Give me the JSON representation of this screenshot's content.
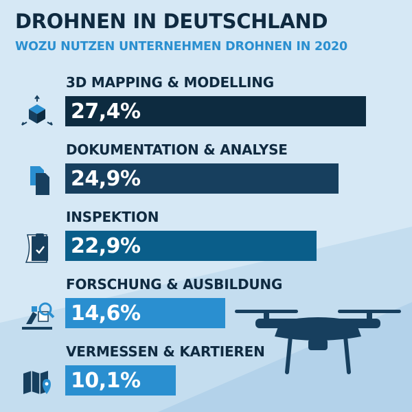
{
  "header": {
    "title": "DROHNEN IN DEUTSCHLAND",
    "subtitle": "WOZU NUTZEN UNTERNEHMEN DROHNEN IN 2020"
  },
  "colors": {
    "background": "#d6e8f5",
    "title": "#0f2a40",
    "subtitle": "#2a8fd0",
    "bars": [
      "#0d2b40",
      "#173f5e",
      "#0a5e8a",
      "#2a8fd0",
      "#2a8fd0"
    ]
  },
  "chart_data": {
    "type": "bar",
    "orientation": "horizontal",
    "categories": [
      "3D MAPPING & MODELLING",
      "DOKUMENTATION & ANALYSE",
      "INSPEKTION",
      "FORSCHUNG & AUSBILDUNG",
      "VERMESSEN & KARTIEREN"
    ],
    "values": [
      27.4,
      24.9,
      22.9,
      14.6,
      10.1
    ],
    "value_labels": [
      "27,4%",
      "24,9%",
      "22,9%",
      "14,6%",
      "10,1%"
    ],
    "icons": [
      "cube-icon",
      "documents-icon",
      "clipboard-icon",
      "research-icon",
      "map-icon"
    ],
    "xlim": [
      0,
      30
    ],
    "grid": false,
    "legend": "none"
  }
}
